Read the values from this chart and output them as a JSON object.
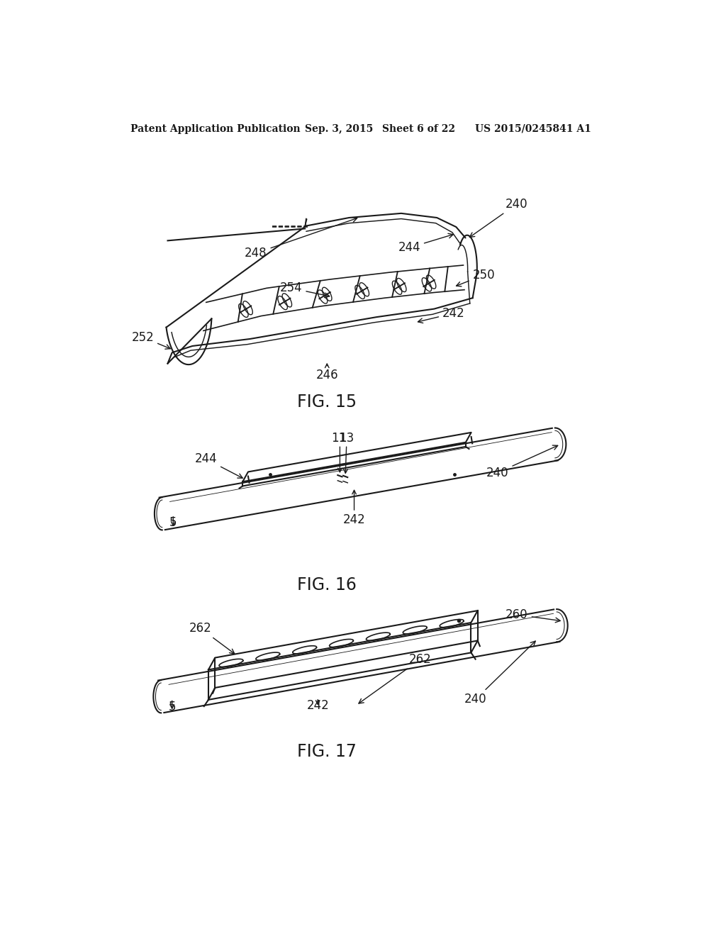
{
  "background_color": "#ffffff",
  "header_left": "Patent Application Publication",
  "header_mid": "Sep. 3, 2015   Sheet 6 of 22",
  "header_right": "US 2015/0245841 A1",
  "fig15_label": "FIG. 15",
  "fig16_label": "FIG. 16",
  "fig17_label": "FIG. 17",
  "line_color": "#1a1a1a",
  "line_width": 1.5,
  "label_fontsize": 12,
  "header_fontsize": 11,
  "fig_label_fontsize": 16
}
